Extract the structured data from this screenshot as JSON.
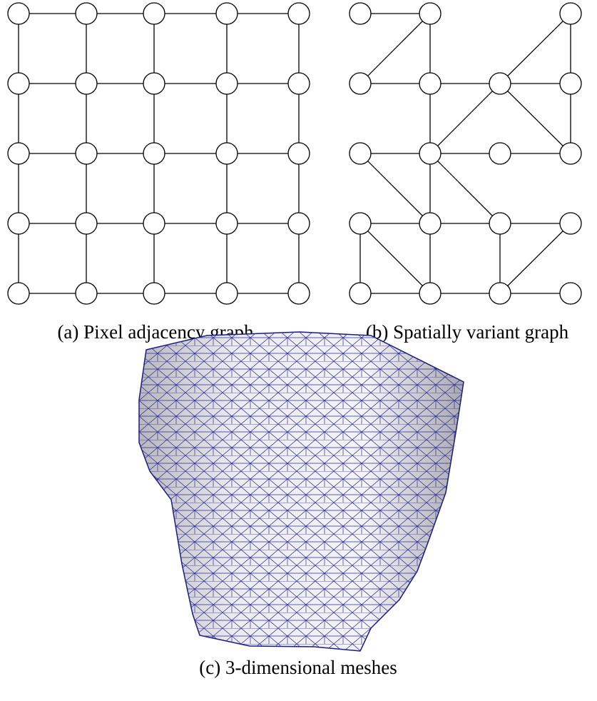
{
  "figure": {
    "captions": [
      "(a) Pixel adjacency graph",
      "(b) Spatially variant graph",
      "(c) 3-dimensional meshes"
    ]
  }
}
